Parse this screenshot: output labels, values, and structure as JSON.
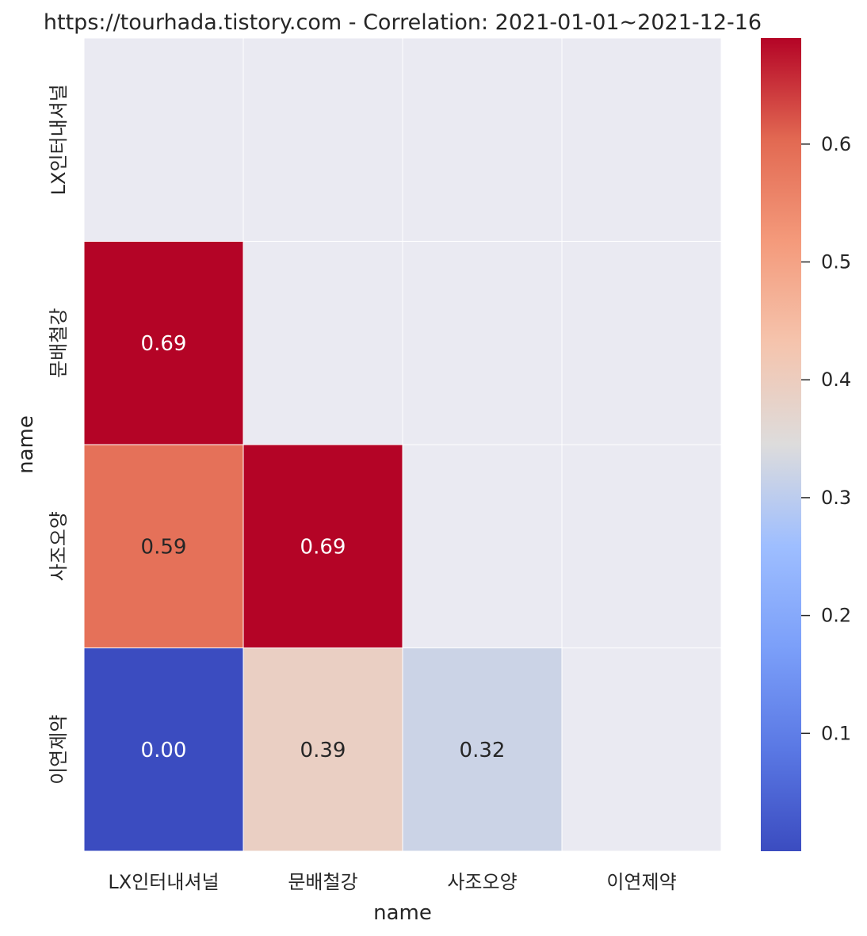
{
  "chart_data": {
    "type": "heatmap",
    "title": "https://tourhada.tistory.com - Correlation: 2021-01-01~2021-12-16",
    "xlabel": "name",
    "ylabel": "name",
    "x_categories": [
      "LX인터내셔널",
      "문배철강",
      "사조오양",
      "이연제약"
    ],
    "y_categories": [
      "LX인터내셔널",
      "문배철강",
      "사조오양",
      "이연제약"
    ],
    "values": [
      [
        null,
        null,
        null,
        null
      ],
      [
        0.69,
        null,
        null,
        null
      ],
      [
        0.59,
        0.69,
        null,
        null
      ],
      [
        0.0,
        0.39,
        0.32,
        null
      ]
    ],
    "annotations": [
      [
        "",
        "",
        "",
        ""
      ],
      [
        "0.69",
        "",
        "",
        ""
      ],
      [
        "0.59",
        "0.69",
        "",
        ""
      ],
      [
        "0.00",
        "0.39",
        "0.32",
        ""
      ]
    ],
    "mask": "upper triangle incl. diagonal",
    "colormap": "coolwarm",
    "vmin": 0.0,
    "vmax": 0.69,
    "colorbar_ticks": [
      0.1,
      0.2,
      0.3,
      0.4,
      0.5,
      0.6
    ],
    "colorbar_tick_labels": [
      "0.1",
      "0.2",
      "0.3",
      "0.4",
      "0.5",
      "0.6"
    ],
    "colors": {
      "background": "#eaeaf2",
      "grid": "#ffffff",
      "text_dark": "#262626",
      "text_light": "#ffffff"
    }
  }
}
